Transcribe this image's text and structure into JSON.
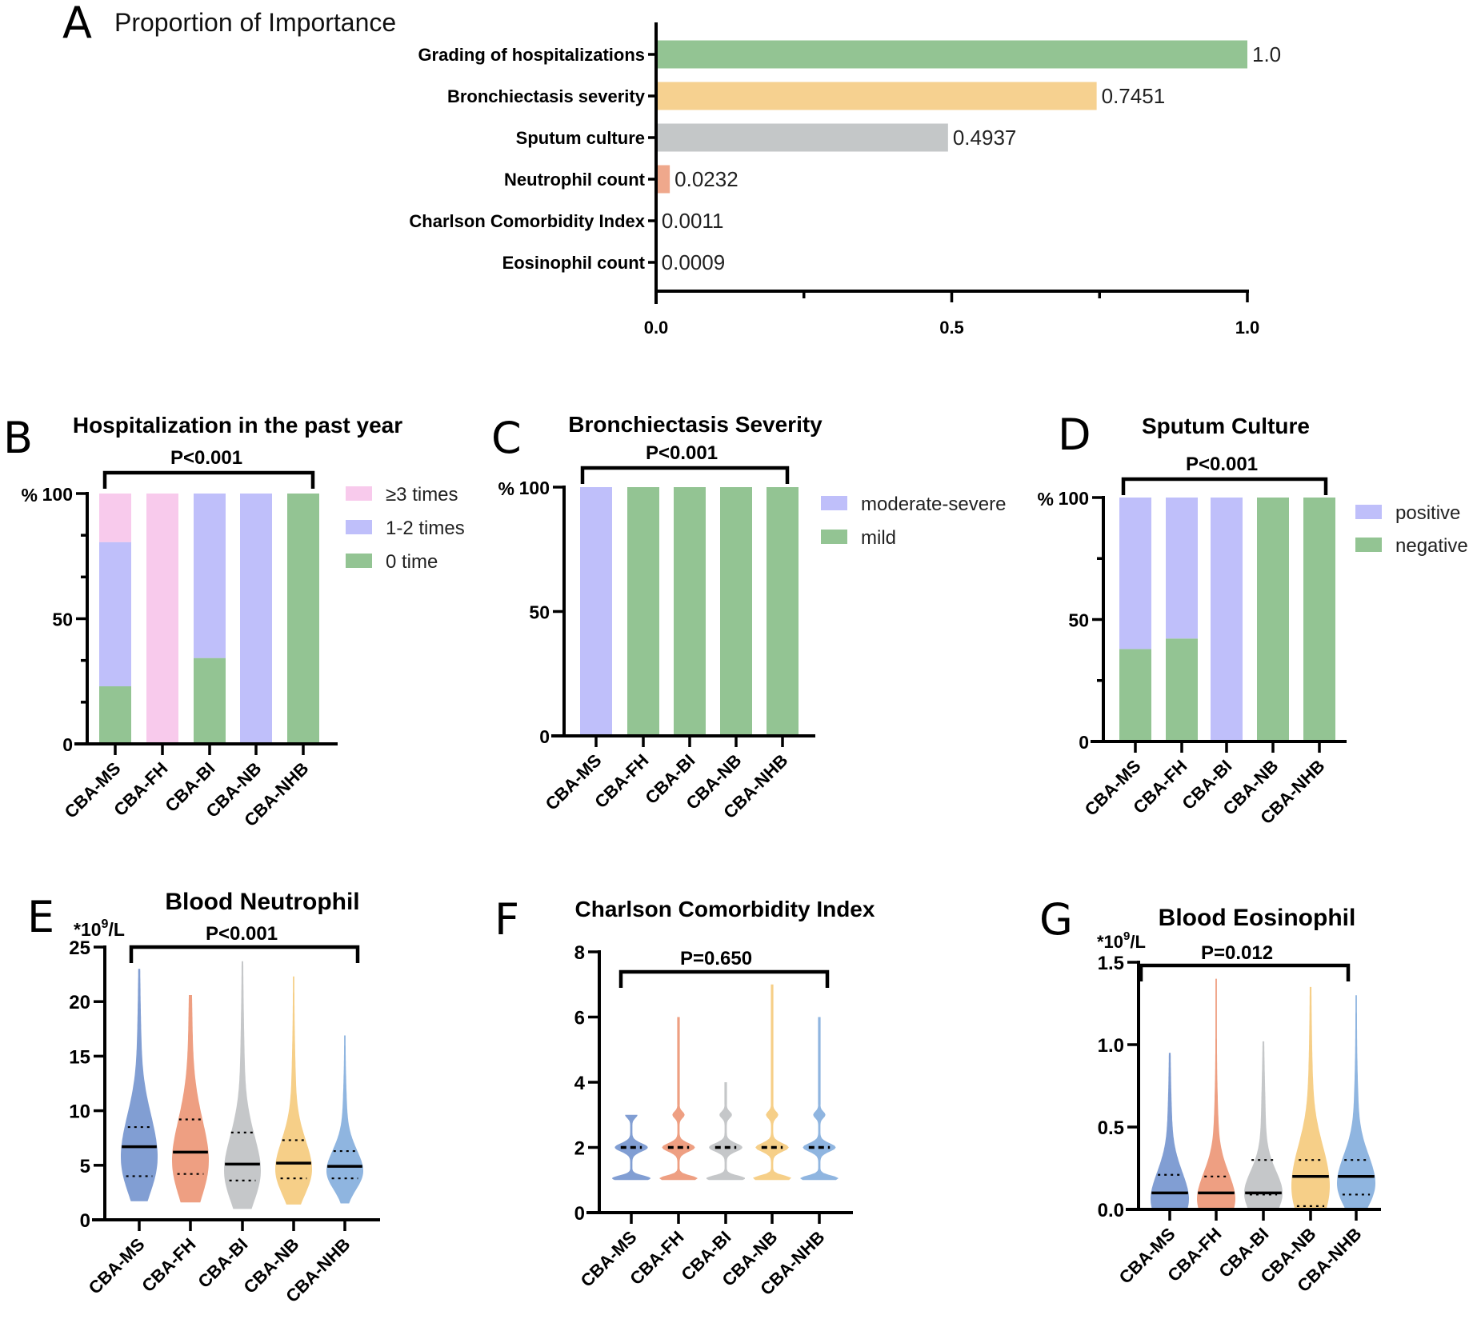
{
  "figure": {
    "panels": [
      "A",
      "B",
      "C",
      "D",
      "E",
      "F",
      "G"
    ]
  },
  "chart_data": [
    {
      "panel": "A",
      "type": "bar",
      "orientation": "horizontal",
      "title": "Proportion of Importance",
      "categories": [
        "Grading of hospitalizations",
        "Bronchiectasis severity",
        "Sputum culture",
        "Neutrophil count",
        "Charlson Comorbidity Index",
        "Eosinophil count"
      ],
      "values": [
        1.0,
        0.7451,
        0.4937,
        0.0232,
        0.0011,
        0.0009
      ],
      "value_labels": [
        "1.0",
        "0.7451",
        "0.4937",
        "0.0232",
        "0.0011",
        "0.0009"
      ],
      "colors": [
        "#93C493",
        "#F6D190",
        "#C4C7C8",
        "#EFA88C",
        "#93B5DD",
        "#93B5DD"
      ],
      "xlim": [
        0,
        1.0
      ],
      "xticks": [
        0.0,
        0.25,
        0.5,
        0.75,
        1.0
      ],
      "xtick_labels": [
        "0.0",
        "",
        "0.5",
        "",
        "1.0"
      ],
      "xlabel": "",
      "ylabel": "",
      "grid": false
    },
    {
      "panel": "B",
      "type": "bar",
      "stacked": true,
      "title": "Hospitalization in the past year",
      "p_value": "P<0.001",
      "categories": [
        "CBA-MS",
        "CBA-FH",
        "CBA-BI",
        "CBA-NB",
        "CBA-NHB"
      ],
      "series": [
        {
          "name": "0 time",
          "color": "#93C493",
          "values": [
            23.0,
            0,
            34.3,
            0,
            100
          ]
        },
        {
          "name": "1-2 times",
          "color": "#BFBFFA",
          "values": [
            57.6,
            0,
            65.7,
            100,
            0
          ]
        },
        {
          "name": "≥3 times",
          "color": "#F8CAEC",
          "values": [
            19.4,
            100,
            0,
            0,
            0
          ]
        }
      ],
      "legend_order": [
        "≥3 times",
        "1-2 times",
        "0 time"
      ],
      "legend": "right",
      "ylabel": "%",
      "ylim": [
        0,
        100
      ],
      "yticks": [
        0,
        50,
        100
      ],
      "yminor": [
        16.67,
        33.33,
        66.67,
        83.33
      ],
      "grid": false
    },
    {
      "panel": "C",
      "type": "bar",
      "stacked": true,
      "title": "Bronchiectasis Severity",
      "p_value": "P<0.001",
      "categories": [
        "CBA-MS",
        "CBA-FH",
        "CBA-BI",
        "CBA-NB",
        "CBA-NHB"
      ],
      "series": [
        {
          "name": "mild",
          "color": "#93C493",
          "values": [
            0,
            100,
            100,
            100,
            100
          ]
        },
        {
          "name": "moderate-severe",
          "color": "#BFBFFA",
          "values": [
            100,
            0,
            0,
            0,
            0
          ]
        }
      ],
      "legend_order": [
        "moderate-severe",
        "mild"
      ],
      "legend": "right",
      "ylabel": "%",
      "ylim": [
        0,
        100
      ],
      "yticks": [
        0,
        50,
        100
      ],
      "yminor": [],
      "grid": false
    },
    {
      "panel": "D",
      "type": "bar",
      "stacked": true,
      "title": "Sputum Culture",
      "p_value": "P<0.001",
      "categories": [
        "CBA-MS",
        "CBA-FH",
        "CBA-BI",
        "CBA-NB",
        "CBA-NHB"
      ],
      "series": [
        {
          "name": "negative",
          "color": "#93C493",
          "values": [
            37.9,
            42.2,
            0,
            100,
            100
          ]
        },
        {
          "name": "positive",
          "color": "#BFBFFA",
          "values": [
            62.1,
            57.8,
            100,
            0,
            0
          ]
        }
      ],
      "legend_order": [
        "positive",
        "negative"
      ],
      "legend": "right",
      "ylabel": "%",
      "ylim": [
        0,
        100
      ],
      "yticks": [
        0,
        50,
        100
      ],
      "yminor": [
        25,
        75
      ],
      "grid": false
    },
    {
      "panel": "E",
      "type": "violin",
      "title": "Blood Neutrophil",
      "p_value": "P<0.001",
      "unit_prefix": "*10",
      "unit_exp": "9",
      "unit_suffix": "/L",
      "categories": [
        "CBA-MS",
        "CBA-FH",
        "CBA-BI",
        "CBA-NB",
        "CBA-NHB"
      ],
      "colors": [
        "#819ED3",
        "#EE9F82",
        "#C5C7C9",
        "#F6CF88",
        "#8FB5E0"
      ],
      "median": [
        6.7,
        6.2,
        5.1,
        5.2,
        4.9
      ],
      "q1": [
        4.0,
        4.2,
        3.6,
        3.8,
        3.8
      ],
      "q3": [
        8.5,
        9.2,
        8.0,
        7.3,
        6.3
      ],
      "min": [
        1.7,
        1.6,
        1.0,
        1.4,
        1.5
      ],
      "max": [
        23.0,
        20.6,
        23.7,
        22.3,
        16.9
      ],
      "ylim": [
        0,
        25
      ],
      "yticks": [
        0,
        5,
        10,
        15,
        20,
        25
      ],
      "grid": false
    },
    {
      "panel": "F",
      "type": "violin",
      "title": "Charlson Comorbidity Index",
      "p_value": "P=0.650",
      "categories": [
        "CBA-MS",
        "CBA-FH",
        "CBA-BI",
        "CBA-NB",
        "CBA-NHB"
      ],
      "colors": [
        "#819ED3",
        "#EE9F82",
        "#C5C7C9",
        "#F6CF88",
        "#8FB5E0"
      ],
      "median": [
        2,
        2,
        2,
        2,
        2
      ],
      "q1": [
        2,
        2,
        2,
        2,
        2
      ],
      "q3": [
        2,
        2,
        2,
        2,
        2
      ],
      "min": [
        1,
        1,
        1,
        1,
        1
      ],
      "max": [
        3,
        6,
        4,
        7,
        6
      ],
      "ylim": [
        0,
        8
      ],
      "yticks": [
        0,
        2,
        4,
        6,
        8
      ],
      "grid": false
    },
    {
      "panel": "G",
      "type": "violin",
      "title": "Blood Eosinophil",
      "p_value": "P=0.012",
      "unit_prefix": "*10",
      "unit_exp": "9",
      "unit_suffix": "/L",
      "categories": [
        "CBA-MS",
        "CBA-FH",
        "CBA-BI",
        "CBA-NB",
        "CBA-NHB"
      ],
      "colors": [
        "#819ED3",
        "#EE9F82",
        "#C5C7C9",
        "#F6CF88",
        "#8FB5E0"
      ],
      "median": [
        0.1,
        0.1,
        0.1,
        0.2,
        0.2
      ],
      "q1": [
        0.0,
        0.0,
        0.09,
        0.02,
        0.09
      ],
      "q3": [
        0.21,
        0.2,
        0.3,
        0.3,
        0.3
      ],
      "min": [
        0.0,
        0.0,
        0.0,
        0.0,
        0.0
      ],
      "max": [
        0.95,
        1.4,
        1.02,
        1.35,
        1.3
      ],
      "ylim": [
        0,
        1.5
      ],
      "yticks": [
        0.0,
        0.5,
        1.0,
        1.5
      ],
      "ytick_labels": [
        "0.0",
        "0.5",
        "1.0",
        "1.5"
      ],
      "grid": false
    }
  ]
}
